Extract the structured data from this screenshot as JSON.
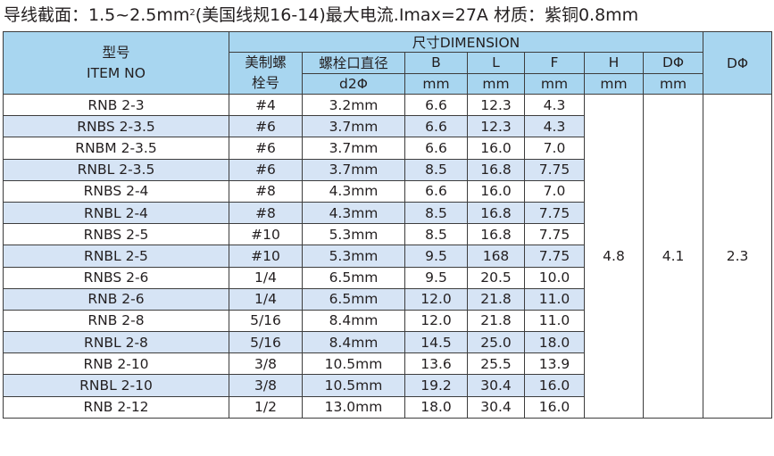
{
  "caption": {
    "part1": "导线截面：1.5~2.5mm",
    "sup": "2",
    "part2": "(美国线规16-14)最大电流.Imax=27A   材质：紫铜0.8mm"
  },
  "header": {
    "item_cn": "型号",
    "item_en": "ITEM NO",
    "dimension": "尺寸DIMENSION",
    "stud_line1": "美制螺",
    "stud_line2": "栓号",
    "hole_label": "螺栓口直径",
    "hole_unit": "d2Φ",
    "b": "B",
    "l": "L",
    "f": "F",
    "h": "H",
    "d": "DΦ",
    "d_outer": "DΦ",
    "unit_mm": "mm"
  },
  "rows": [
    {
      "item": "RNB 2-3",
      "stud": "#4",
      "hole": "3.2mm",
      "b": "6.6",
      "l": "12.3",
      "f": "4.3"
    },
    {
      "item": "RNBS 2-3.5",
      "stud": "#6",
      "hole": "3.7mm",
      "b": "6.6",
      "l": "12.3",
      "f": "4.3"
    },
    {
      "item": "RNBM 2-3.5",
      "stud": "#6",
      "hole": "3.7mm",
      "b": "6.6",
      "l": "16.0",
      "f": "7.0"
    },
    {
      "item": "RNBL 2-3.5",
      "stud": "#6",
      "hole": "3.7mm",
      "b": "8.5",
      "l": "16.8",
      "f": "7.75"
    },
    {
      "item": "RNBS 2-4",
      "stud": "#8",
      "hole": "4.3mm",
      "b": "6.6",
      "l": "16.0",
      "f": "7.0"
    },
    {
      "item": "RNBL 2-4",
      "stud": "#8",
      "hole": "4.3mm",
      "b": "8.5",
      "l": "16.8",
      "f": "7.75"
    },
    {
      "item": "RNBS 2-5",
      "stud": "#10",
      "hole": "5.3mm",
      "b": "8.5",
      "l": "16.8",
      "f": "7.75"
    },
    {
      "item": "RNBL 2-5",
      "stud": "#10",
      "hole": "5.3mm",
      "b": "9.5",
      "l": "168",
      "f": "7.75"
    },
    {
      "item": "RNBS 2-6",
      "stud": "1/4",
      "hole": "6.5mm",
      "b": "9.5",
      "l": "20.5",
      "f": "10.0"
    },
    {
      "item": "RNB 2-6",
      "stud": "1/4",
      "hole": "6.5mm",
      "b": "12.0",
      "l": "21.8",
      "f": "11.0"
    },
    {
      "item": "RNB 2-8",
      "stud": "5/16",
      "hole": "8.4mm",
      "b": "12.0",
      "l": "21.8",
      "f": "11.0"
    },
    {
      "item": "RNBL 2-8",
      "stud": "5/16",
      "hole": "8.4mm",
      "b": "14.5",
      "l": "25.0",
      "f": "18.0"
    },
    {
      "item": "RNB 2-10",
      "stud": "3/8",
      "hole": "10.5mm",
      "b": "13.6",
      "l": "25.5",
      "f": "13.9"
    },
    {
      "item": "RNBL 2-10",
      "stud": "3/8",
      "hole": "10.5mm",
      "b": "19.2",
      "l": "30.4",
      "f": "16.0"
    },
    {
      "item": "RNB 2-12",
      "stud": "1/2",
      "hole": "13.0mm",
      "b": "18.0",
      "l": "30.4",
      "f": "16.0"
    }
  ],
  "shared": {
    "h": "4.8",
    "d": "4.1",
    "d_outer": "2.3"
  },
  "colors": {
    "header_bg": "#a8d6f0",
    "alt_row_bg": "#d6e4f5",
    "border": "#3d3d3d"
  }
}
